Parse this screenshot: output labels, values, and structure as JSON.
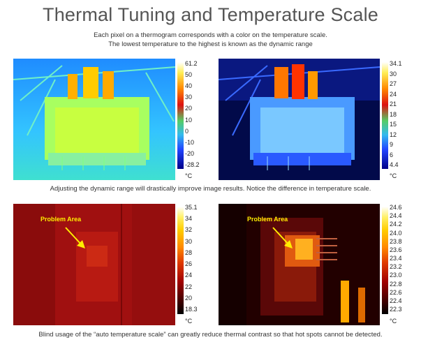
{
  "title": "Thermal Tuning and Temperature Scale",
  "subtitle_line1": "Each pixel on a thermogram corresponds with a color on the temperature scale.",
  "subtitle_line2": "The lowest temperature to the highest is known as the dynamic range",
  "caption_top": "Adjusting the dynamic range will drastically improve image results. Notice the difference in temperature scale.",
  "caption_bottom": "Blind usage of the “auto temperature scale” can greatly reduce thermal contrast so that hot spots cannot be detected.",
  "unit": "°C",
  "problem_label": "Problem Area",
  "images": {
    "top_left": {
      "icon": "transformer-thermogram-icon",
      "scale_ticks": [
        "61.2",
        "50",
        "40",
        "30",
        "20",
        "10",
        "0",
        "-10",
        "-20",
        "-28.2"
      ]
    },
    "top_right": {
      "icon": "transformer-thermogram-icon",
      "scale_ticks": [
        "34.1",
        "30",
        "27",
        "24",
        "21",
        "18",
        "15",
        "12",
        "9",
        "6",
        "4.4"
      ]
    },
    "bottom_left": {
      "icon": "panel-thermogram-icon",
      "scale_ticks": [
        "35.1",
        "34",
        "32",
        "30",
        "28",
        "26",
        "24",
        "22",
        "20",
        "18.3"
      ]
    },
    "bottom_right": {
      "icon": "panel-thermogram-icon",
      "scale_ticks": [
        "24.6",
        "24.4",
        "24.2",
        "24.0",
        "23.8",
        "23.6",
        "23.4",
        "23.2",
        "23.0",
        "22.8",
        "22.6",
        "22.4",
        "22.3"
      ]
    }
  },
  "colors": {
    "rainbow": [
      "#ffffff",
      "#ffe066",
      "#ff9900",
      "#ff3300",
      "#cc0033",
      "#663399",
      "#1a1aff",
      "#000066"
    ],
    "iron": [
      "#ffffff",
      "#fff066",
      "#ffcc00",
      "#ff8800",
      "#e03a00",
      "#a00000",
      "#500000",
      "#000000"
    ]
  }
}
